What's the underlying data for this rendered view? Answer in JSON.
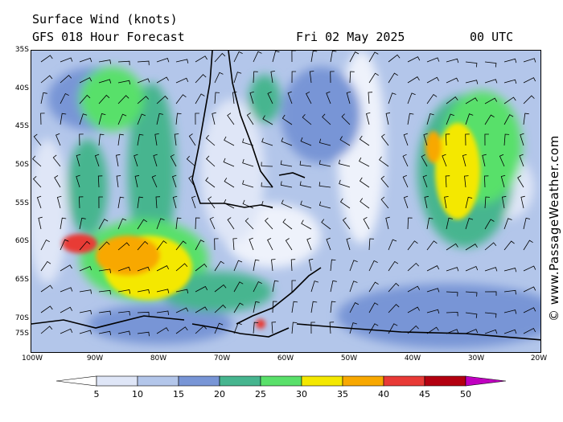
{
  "header": {
    "title": "Surface Wind (knots)",
    "forecast": "GFS 018 Hour Forecast",
    "date": "Fri 02 May 2025",
    "time": "00 UTC"
  },
  "axes": {
    "lat_labels": [
      "35S",
      "40S",
      "45S",
      "50S",
      "55S",
      "60S",
      "65S",
      "70S",
      "75S"
    ],
    "lon_labels": [
      "100W",
      "90W",
      "80W",
      "70W",
      "60W",
      "50W",
      "40W",
      "30W",
      "20W"
    ]
  },
  "legend": {
    "ticks": [
      "5",
      "10",
      "15",
      "20",
      "25",
      "30",
      "35",
      "40",
      "45",
      "50"
    ],
    "colors": [
      "#dfe6f7",
      "#b3c6ea",
      "#7895d6",
      "#46b58f",
      "#59e06a",
      "#f4e800",
      "#f8a800",
      "#e83a36",
      "#b30010",
      "#c000c0"
    ]
  },
  "watermark": "© www.PassageWeather.com"
}
